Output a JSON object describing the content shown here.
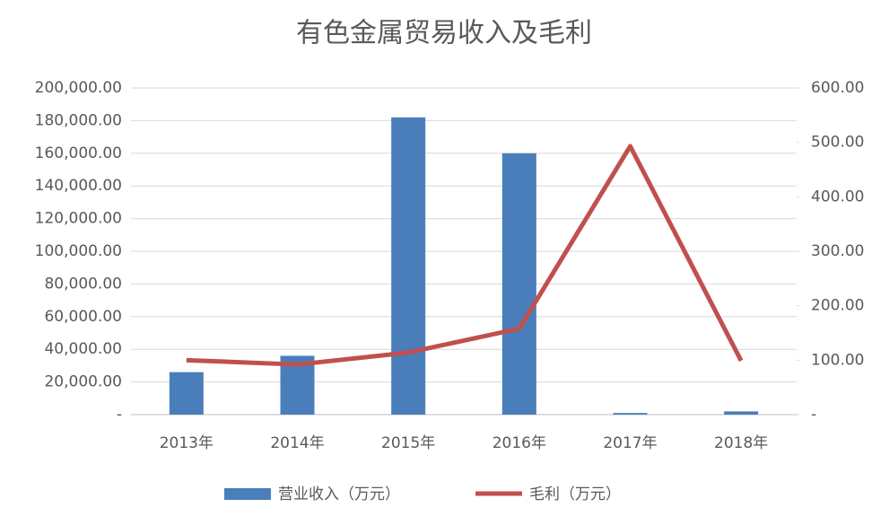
{
  "chart_data": {
    "type": "bar-line",
    "title": "有色金属贸易收入及毛利",
    "categories": [
      "2013年",
      "2014年",
      "2015年",
      "2016年",
      "2017年",
      "2018年"
    ],
    "series": [
      {
        "name": "营业收入（万元）",
        "type": "bar",
        "color": "#4a7ebb",
        "values": [
          26000,
          36000,
          182000,
          160000,
          1000,
          2000
        ]
      },
      {
        "name": "毛利（万元）",
        "type": "line",
        "axis": "y2",
        "color": "#c0504d",
        "values": [
          100,
          92,
          114,
          158,
          493,
          99
        ]
      }
    ],
    "ylim": [
      0,
      200000
    ],
    "yticks": [
      {
        "value": 0,
        "label": "-"
      },
      {
        "value": 20000,
        "label": "20,000.00"
      },
      {
        "value": 40000,
        "label": "40,000.00"
      },
      {
        "value": 60000,
        "label": "60,000.00"
      },
      {
        "value": 80000,
        "label": "80,000.00"
      },
      {
        "value": 100000,
        "label": "100,000.00"
      },
      {
        "value": 120000,
        "label": "120,000.00"
      },
      {
        "value": 140000,
        "label": "140,000.00"
      },
      {
        "value": 160000,
        "label": "160,000.00"
      },
      {
        "value": 180000,
        "label": "180,000.00"
      },
      {
        "value": 200000,
        "label": "200,000.00"
      }
    ],
    "y2lim": [
      0,
      600
    ],
    "y2ticks": [
      {
        "value": 0,
        "label": "-"
      },
      {
        "value": 100,
        "label": "100.00"
      },
      {
        "value": 200,
        "label": "200.00"
      },
      {
        "value": 300,
        "label": "300.00"
      },
      {
        "value": 400,
        "label": "400.00"
      },
      {
        "value": 500,
        "label": "500.00"
      },
      {
        "value": 600,
        "label": "600.00"
      }
    ],
    "grid": true,
    "legend": "bottom"
  }
}
